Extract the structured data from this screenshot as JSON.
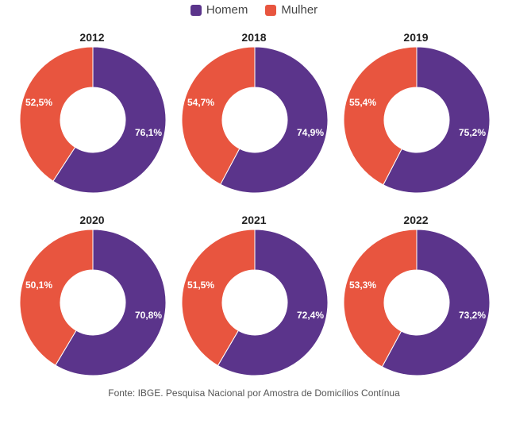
{
  "legend": [
    {
      "name": "Homem",
      "color": "#5b348b"
    },
    {
      "name": "Mulher",
      "color": "#e8553f"
    }
  ],
  "chart_data": {
    "type": "pie",
    "subtype": "donut",
    "series_names": [
      "Homem",
      "Mulher"
    ],
    "colors": {
      "Homem": "#5b348b",
      "Mulher": "#e8553f"
    },
    "panels": [
      {
        "title": "2012",
        "homem": 76.1,
        "mulher": 52.5,
        "homem_label": "76,1%",
        "mulher_label": "52,5%"
      },
      {
        "title": "2018",
        "homem": 74.9,
        "mulher": 54.7,
        "homem_label": "74,9%",
        "mulher_label": "54,7%"
      },
      {
        "title": "2019",
        "homem": 75.2,
        "mulher": 55.4,
        "homem_label": "75,2%",
        "mulher_label": "55,4%"
      },
      {
        "title": "2020",
        "homem": 70.8,
        "mulher": 50.1,
        "homem_label": "70,8%",
        "mulher_label": "50,1%"
      },
      {
        "title": "2021",
        "homem": 72.4,
        "mulher": 51.5,
        "homem_label": "72,4%",
        "mulher_label": "51,5%"
      },
      {
        "title": "2022",
        "homem": 73.2,
        "mulher": 53.3,
        "homem_label": "73,2%",
        "mulher_label": "53,3%"
      }
    ]
  },
  "source": "Fonte: IBGE. Pesquisa Nacional por Amostra de Domicílios Contínua"
}
